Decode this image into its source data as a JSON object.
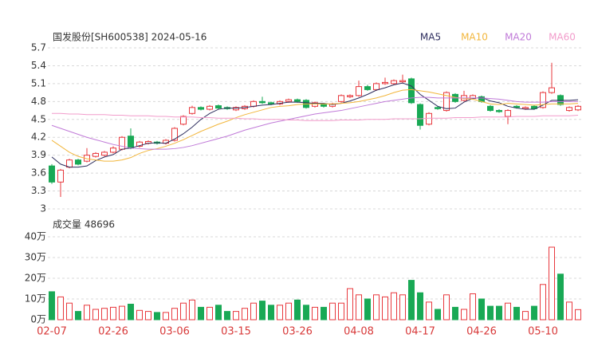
{
  "chart_data": [
    {
      "type": "candlestick",
      "title": "国发股份[SH600538] 2024-05-16",
      "open": [
        3.72,
        3.45,
        3.7,
        3.82,
        3.8,
        3.88,
        3.9,
        3.95,
        4.0,
        4.22,
        4.05,
        4.1,
        4.12,
        4.1,
        4.15,
        4.42,
        4.6,
        4.7,
        4.67,
        4.73,
        4.7,
        4.66,
        4.68,
        4.72,
        4.8,
        4.78,
        4.76,
        4.8,
        4.83,
        4.82,
        4.72,
        4.75,
        4.72,
        4.8,
        4.88,
        4.9,
        5.05,
        5.0,
        5.1,
        5.1,
        5.13,
        5.18,
        4.75,
        4.42,
        4.7,
        4.65,
        4.92,
        4.82,
        4.85,
        4.88,
        4.72,
        4.65,
        4.55,
        4.72,
        4.68,
        4.72,
        4.7,
        4.95,
        4.9,
        4.65,
        4.66
      ],
      "high": [
        3.75,
        3.67,
        3.84,
        3.84,
        4.02,
        3.95,
        3.97,
        4.05,
        4.22,
        4.35,
        4.14,
        4.15,
        4.14,
        4.17,
        4.37,
        4.57,
        4.73,
        4.72,
        4.74,
        4.75,
        4.72,
        4.72,
        4.74,
        4.82,
        4.88,
        4.8,
        4.82,
        4.85,
        4.85,
        4.84,
        4.8,
        4.77,
        4.78,
        4.92,
        4.92,
        5.15,
        5.08,
        5.12,
        5.2,
        5.17,
        5.25,
        5.2,
        4.77,
        4.62,
        4.72,
        4.97,
        4.94,
        4.98,
        4.92,
        4.9,
        4.74,
        4.67,
        4.67,
        4.74,
        4.72,
        4.74,
        4.97,
        5.45,
        4.92,
        4.72,
        4.74
      ],
      "low": [
        3.42,
        3.2,
        3.68,
        3.73,
        3.78,
        3.86,
        3.88,
        3.93,
        3.98,
        4.0,
        4.03,
        4.08,
        4.08,
        4.08,
        4.13,
        4.4,
        4.58,
        4.65,
        4.65,
        4.67,
        4.66,
        4.64,
        4.66,
        4.7,
        4.76,
        4.74,
        4.74,
        4.78,
        4.78,
        4.68,
        4.7,
        4.7,
        4.7,
        4.78,
        4.86,
        4.88,
        4.98,
        4.98,
        5.08,
        5.08,
        5.11,
        4.76,
        4.33,
        4.4,
        4.66,
        4.63,
        4.78,
        4.8,
        4.83,
        4.78,
        4.63,
        4.61,
        4.42,
        4.68,
        4.66,
        4.66,
        4.68,
        4.93,
        4.73,
        4.63,
        4.64
      ],
      "close": [
        3.45,
        3.65,
        3.82,
        3.75,
        3.9,
        3.93,
        3.95,
        4.02,
        4.2,
        4.02,
        4.12,
        4.13,
        4.1,
        4.15,
        4.35,
        4.55,
        4.7,
        4.67,
        4.72,
        4.69,
        4.68,
        4.7,
        4.72,
        4.8,
        4.78,
        4.76,
        4.8,
        4.83,
        4.8,
        4.7,
        4.78,
        4.72,
        4.76,
        4.9,
        4.9,
        5.05,
        5.0,
        5.1,
        5.12,
        5.15,
        5.15,
        4.78,
        4.4,
        4.6,
        4.68,
        4.95,
        4.8,
        4.9,
        4.9,
        4.8,
        4.65,
        4.63,
        4.65,
        4.7,
        4.7,
        4.68,
        4.95,
        5.03,
        4.75,
        4.7,
        4.72
      ],
      "up_color": "#e8383d",
      "down_color": "#19a955",
      "series": [
        {
          "name": "MA5",
          "color": "#2e2e5e",
          "values": [
            3.87,
            3.75,
            3.7,
            3.7,
            3.72,
            3.81,
            3.87,
            3.91,
            4.0,
            4.02,
            4.06,
            4.1,
            4.11,
            4.1,
            4.17,
            4.26,
            4.37,
            4.5,
            4.6,
            4.67,
            4.69,
            4.69,
            4.7,
            4.72,
            4.74,
            4.75,
            4.77,
            4.79,
            4.79,
            4.78,
            4.77,
            4.77,
            4.75,
            4.77,
            4.81,
            4.86,
            4.92,
            4.99,
            5.03,
            5.08,
            5.11,
            5.06,
            4.92,
            4.82,
            4.72,
            4.68,
            4.69,
            4.79,
            4.85,
            4.87,
            4.81,
            4.78,
            4.72,
            4.69,
            4.67,
            4.67,
            4.74,
            4.82,
            4.82,
            4.82,
            4.83
          ]
        },
        {
          "name": "MA10",
          "color": "#f2b63c",
          "values": [
            4.15,
            4.05,
            3.95,
            3.88,
            3.84,
            3.82,
            3.8,
            3.8,
            3.82,
            3.86,
            3.93,
            3.98,
            4.01,
            4.05,
            4.1,
            4.16,
            4.23,
            4.3,
            4.36,
            4.42,
            4.47,
            4.53,
            4.58,
            4.62,
            4.66,
            4.7,
            4.72,
            4.73,
            4.75,
            4.76,
            4.76,
            4.76,
            4.76,
            4.77,
            4.78,
            4.8,
            4.83,
            4.86,
            4.9,
            4.95,
            4.99,
            5.0,
            4.98,
            4.96,
            4.93,
            4.9,
            4.87,
            4.85,
            4.84,
            4.8,
            4.76,
            4.75,
            4.77,
            4.76,
            4.75,
            4.74,
            4.75,
            4.76,
            4.76,
            4.76,
            4.77
          ]
        },
        {
          "name": "MA20",
          "color": "#c07ad8",
          "values": [
            4.4,
            4.35,
            4.3,
            4.25,
            4.2,
            4.16,
            4.12,
            4.08,
            4.05,
            4.02,
            4.01,
            4.0,
            4.0,
            4.0,
            4.01,
            4.03,
            4.06,
            4.1,
            4.14,
            4.18,
            4.22,
            4.27,
            4.32,
            4.36,
            4.4,
            4.44,
            4.47,
            4.5,
            4.53,
            4.56,
            4.59,
            4.61,
            4.63,
            4.65,
            4.68,
            4.71,
            4.74,
            4.77,
            4.8,
            4.82,
            4.84,
            4.86,
            4.87,
            4.87,
            4.86,
            4.86,
            4.86,
            4.86,
            4.86,
            4.86,
            4.85,
            4.84,
            4.82,
            4.8,
            4.79,
            4.79,
            4.79,
            4.8,
            4.8,
            4.8,
            4.8
          ]
        },
        {
          "name": "MA60",
          "color": "#f29ccb",
          "values": [
            4.6,
            4.6,
            4.59,
            4.59,
            4.58,
            4.58,
            4.58,
            4.57,
            4.57,
            4.56,
            4.56,
            4.56,
            4.55,
            4.55,
            4.54,
            4.54,
            4.54,
            4.53,
            4.53,
            4.52,
            4.52,
            4.52,
            4.51,
            4.51,
            4.5,
            4.5,
            4.5,
            4.49,
            4.49,
            4.48,
            4.48,
            4.48,
            4.48,
            4.49,
            4.49,
            4.49,
            4.5,
            4.5,
            4.5,
            4.51,
            4.51,
            4.51,
            4.51,
            4.52,
            4.52,
            4.52,
            4.53,
            4.53,
            4.53,
            4.54,
            4.54,
            4.54,
            4.54,
            4.55,
            4.55,
            4.55,
            4.56,
            4.56,
            4.56,
            4.56,
            4.57
          ]
        }
      ],
      "ylim": [
        3,
        5.7
      ],
      "yticks": [
        3,
        3.3,
        3.6,
        3.9,
        4.2,
        4.5,
        4.8,
        5.1,
        5.4,
        5.7
      ],
      "grid": true
    },
    {
      "type": "bar",
      "title": "成交量 48696",
      "categories": [
        "02-07",
        null,
        null,
        null,
        null,
        null,
        null,
        "02-26",
        null,
        null,
        null,
        null,
        null,
        null,
        "03-06",
        null,
        null,
        null,
        null,
        null,
        null,
        "03-15",
        null,
        null,
        null,
        null,
        null,
        null,
        "03-26",
        null,
        null,
        null,
        null,
        null,
        null,
        "04-08",
        null,
        null,
        null,
        null,
        null,
        null,
        "04-17",
        null,
        null,
        null,
        null,
        null,
        null,
        "04-26",
        null,
        null,
        null,
        null,
        null,
        null,
        "05-10",
        null,
        null,
        null,
        null
      ],
      "values": [
        13.5,
        11,
        8,
        4,
        7,
        5,
        5.5,
        6,
        6.5,
        7.5,
        4.5,
        4,
        3.5,
        3.5,
        5.5,
        8,
        9.5,
        6,
        6,
        7,
        4,
        4,
        5.5,
        8,
        9,
        7,
        7,
        8,
        9.5,
        7,
        6,
        6,
        8,
        8,
        15,
        12,
        10,
        12,
        11,
        13,
        12,
        19,
        13,
        8.5,
        5,
        12,
        6,
        5,
        12.5,
        10,
        6.5,
        6.5,
        8,
        6,
        4,
        6.5,
        17,
        35,
        22,
        8.5,
        4.87
      ],
      "ylim": [
        0,
        40
      ],
      "yticks": [
        {
          "value": 0,
          "label": "0万"
        },
        {
          "value": 10,
          "label": "10万"
        },
        {
          "value": 20,
          "label": "20万"
        },
        {
          "value": 30,
          "label": "30万"
        },
        {
          "value": 40,
          "label": "40万"
        }
      ],
      "grid": true
    }
  ]
}
